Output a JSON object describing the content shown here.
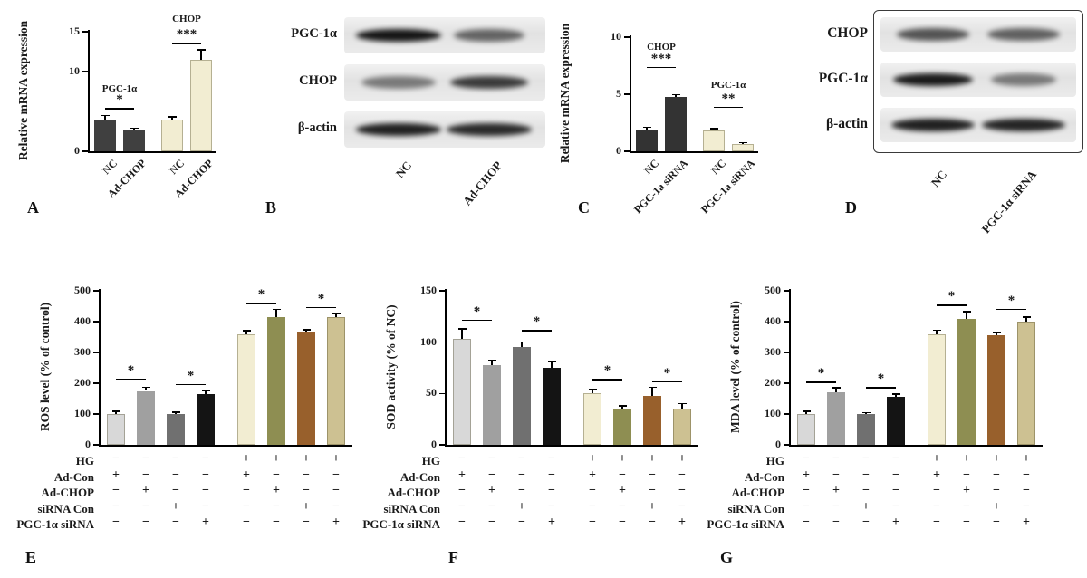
{
  "panels": {
    "A": "A",
    "B": "B",
    "C": "C",
    "D": "D",
    "E": "E",
    "F": "F",
    "G": "G"
  },
  "chart_data": [
    {
      "id": "A",
      "type": "bar",
      "ylabel": "Relative mRNA expression",
      "ylim": [
        0,
        15
      ],
      "yticks": [
        0,
        10,
        15
      ],
      "categories": [
        "NC",
        "Ad-CHOP",
        "NC",
        "Ad-CHOP"
      ],
      "values": [
        4.0,
        2.6,
        4.0,
        11.5
      ],
      "errors": [
        0.5,
        0.3,
        0.35,
        1.2
      ],
      "colors": [
        "#404040",
        "#404040",
        "#f2edd2",
        "#f2edd2"
      ],
      "group_labels": [
        {
          "text": "PGC-1α",
          "bars": [
            0,
            1
          ],
          "y": 7.6
        },
        {
          "text": "CHOP",
          "bars": [
            2,
            3
          ],
          "y": 16.4
        }
      ],
      "significance": [
        {
          "bars": [
            0,
            1
          ],
          "y": 5.4,
          "label": "*"
        },
        {
          "bars": [
            2,
            3
          ],
          "y": 13.6,
          "label": "***"
        }
      ]
    },
    {
      "id": "C",
      "type": "bar",
      "ylabel": "Relative mRNA expression",
      "ylim": [
        0,
        10
      ],
      "yticks": [
        0,
        5,
        10
      ],
      "categories": [
        "NC",
        "PGC-1a siRNA",
        "NC",
        "PGC-1a siRNA"
      ],
      "values": [
        1.8,
        4.8,
        1.8,
        0.65
      ],
      "errors": [
        0.3,
        0.15,
        0.2,
        0.1
      ],
      "colors": [
        "#333333",
        "#333333",
        "#f2edd2",
        "#f2edd2"
      ],
      "group_labels": [
        {
          "text": "CHOP",
          "bars": [
            0,
            1
          ],
          "y": 9.0
        },
        {
          "text": "PGC-1α",
          "bars": [
            2,
            3
          ],
          "y": 5.6
        }
      ],
      "significance": [
        {
          "bars": [
            0,
            1
          ],
          "y": 7.4,
          "label": "***"
        },
        {
          "bars": [
            2,
            3
          ],
          "y": 3.9,
          "label": "**"
        }
      ]
    },
    {
      "id": "E",
      "type": "bar",
      "ylabel": "ROS level (% of control)",
      "ylim": [
        0,
        500
      ],
      "yticks": [
        0,
        100,
        200,
        300,
        400,
        500
      ],
      "values": [
        100,
        175,
        100,
        165,
        360,
        415,
        365,
        415
      ],
      "errors": [
        8,
        12,
        6,
        10,
        10,
        25,
        8,
        10
      ],
      "colors": [
        "#d8d8d8",
        "#a0a0a0",
        "#707070",
        "#141414",
        "#f2edd2",
        "#8e8e52",
        "#98602c",
        "#cdc192"
      ],
      "significance": [
        {
          "bars": [
            0,
            1
          ],
          "y": 215,
          "label": "*"
        },
        {
          "bars": [
            2,
            3
          ],
          "y": 198,
          "label": "*"
        },
        {
          "bars": [
            4,
            5
          ],
          "y": 462,
          "label": "*"
        },
        {
          "bars": [
            6,
            7
          ],
          "y": 448,
          "label": "*"
        }
      ],
      "matrix": {
        "rows": [
          {
            "label": "HG",
            "symbols": [
              "−",
              "−",
              "−",
              "−",
              "+",
              "+",
              "+",
              "+"
            ]
          },
          {
            "label": "Ad-Con",
            "symbols": [
              "+",
              "−",
              "−",
              "−",
              "+",
              "−",
              "−",
              "−"
            ]
          },
          {
            "label": "Ad-CHOP",
            "symbols": [
              "−",
              "+",
              "−",
              "−",
              "−",
              "+",
              "−",
              "−"
            ]
          },
          {
            "label": "siRNA Con",
            "symbols": [
              "−",
              "−",
              "+",
              "−",
              "−",
              "−",
              "+",
              "−"
            ]
          },
          {
            "label": "PGC-1α siRNA",
            "symbols": [
              "−",
              "−",
              "−",
              "+",
              "−",
              "−",
              "−",
              "+"
            ]
          }
        ]
      }
    },
    {
      "id": "F",
      "type": "bar",
      "ylabel": "SOD activity (% of NC)",
      "ylim": [
        0,
        150
      ],
      "yticks": [
        0,
        50,
        100,
        150
      ],
      "values": [
        103,
        78,
        95,
        75,
        50,
        35,
        48,
        35
      ],
      "errors": [
        10,
        4,
        5,
        6,
        4,
        3,
        8,
        5
      ],
      "colors": [
        "#d8d8d8",
        "#a0a0a0",
        "#707070",
        "#141414",
        "#f2edd2",
        "#8e8e52",
        "#98602c",
        "#cdc192"
      ],
      "significance": [
        {
          "bars": [
            0,
            1
          ],
          "y": 122,
          "label": "*"
        },
        {
          "bars": [
            2,
            3
          ],
          "y": 112,
          "label": "*"
        },
        {
          "bars": [
            4,
            5
          ],
          "y": 64,
          "label": "*"
        },
        {
          "bars": [
            6,
            7
          ],
          "y": 62,
          "label": "*"
        }
      ],
      "matrix": {
        "rows": [
          {
            "label": "HG",
            "symbols": [
              "−",
              "−",
              "−",
              "−",
              "+",
              "+",
              "+",
              "+"
            ]
          },
          {
            "label": "Ad-Con",
            "symbols": [
              "+",
              "−",
              "−",
              "−",
              "+",
              "−",
              "−",
              "−"
            ]
          },
          {
            "label": "Ad-CHOP",
            "symbols": [
              "−",
              "+",
              "−",
              "−",
              "−",
              "+",
              "−",
              "−"
            ]
          },
          {
            "label": "siRNA Con",
            "symbols": [
              "−",
              "−",
              "+",
              "−",
              "−",
              "−",
              "+",
              "−"
            ]
          },
          {
            "label": "PGC-1α siRNA",
            "symbols": [
              "−",
              "−",
              "−",
              "+",
              "−",
              "−",
              "−",
              "+"
            ]
          }
        ]
      }
    },
    {
      "id": "G",
      "type": "bar",
      "ylabel": "MDA level (% of control)",
      "ylim": [
        0,
        500
      ],
      "yticks": [
        0,
        100,
        200,
        300,
        400,
        500
      ],
      "values": [
        100,
        170,
        100,
        155,
        360,
        410,
        355,
        400
      ],
      "errors": [
        8,
        15,
        5,
        10,
        12,
        22,
        10,
        15
      ],
      "colors": [
        "#d8d8d8",
        "#a0a0a0",
        "#707070",
        "#141414",
        "#f2edd2",
        "#8e8e52",
        "#98602c",
        "#cdc192"
      ],
      "significance": [
        {
          "bars": [
            0,
            1
          ],
          "y": 205,
          "label": "*"
        },
        {
          "bars": [
            2,
            3
          ],
          "y": 188,
          "label": "*"
        },
        {
          "bars": [
            4,
            5
          ],
          "y": 455,
          "label": "*"
        },
        {
          "bars": [
            6,
            7
          ],
          "y": 442,
          "label": "*"
        }
      ],
      "matrix": {
        "rows": [
          {
            "label": "HG",
            "symbols": [
              "−",
              "−",
              "−",
              "−",
              "+",
              "+",
              "+",
              "+"
            ]
          },
          {
            "label": "Ad-Con",
            "symbols": [
              "+",
              "−",
              "−",
              "−",
              "+",
              "−",
              "−",
              "−"
            ]
          },
          {
            "label": "Ad-CHOP",
            "symbols": [
              "−",
              "+",
              "−",
              "−",
              "−",
              "+",
              "−",
              "−"
            ]
          },
          {
            "label": "siRNA Con",
            "symbols": [
              "−",
              "−",
              "+",
              "−",
              "−",
              "−",
              "+",
              "−"
            ]
          },
          {
            "label": "PGC-1α siRNA",
            "symbols": [
              "−",
              "−",
              "−",
              "+",
              "−",
              "−",
              "−",
              "+"
            ]
          }
        ]
      }
    }
  ],
  "blots": [
    {
      "id": "B",
      "lanes": [
        "NC",
        "Ad-CHOP"
      ],
      "rows": [
        {
          "label": "PGC-1α",
          "bands": [
            {
              "i": 0.97,
              "w": 1.15
            },
            {
              "i": 0.6,
              "w": 0.95
            }
          ]
        },
        {
          "label": "CHOP",
          "bands": [
            {
              "i": 0.5,
              "w": 1.0
            },
            {
              "i": 0.8,
              "w": 1.05
            }
          ]
        },
        {
          "label": "β-actin",
          "bands": [
            {
              "i": 0.92,
              "w": 1.15
            },
            {
              "i": 0.88,
              "w": 1.15
            }
          ]
        }
      ]
    },
    {
      "id": "D",
      "lanes": [
        "NC",
        "PGC-1α siRNA"
      ],
      "rows": [
        {
          "label": "CHOP",
          "bands": [
            {
              "i": 0.68,
              "w": 1.0
            },
            {
              "i": 0.62,
              "w": 1.0
            }
          ]
        },
        {
          "label": "PGC-1α",
          "bands": [
            {
              "i": 0.95,
              "w": 1.1
            },
            {
              "i": 0.5,
              "w": 0.9
            }
          ]
        },
        {
          "label": "β-actin",
          "bands": [
            {
              "i": 0.92,
              "w": 1.15
            },
            {
              "i": 0.9,
              "w": 1.15
            }
          ]
        }
      ]
    }
  ]
}
